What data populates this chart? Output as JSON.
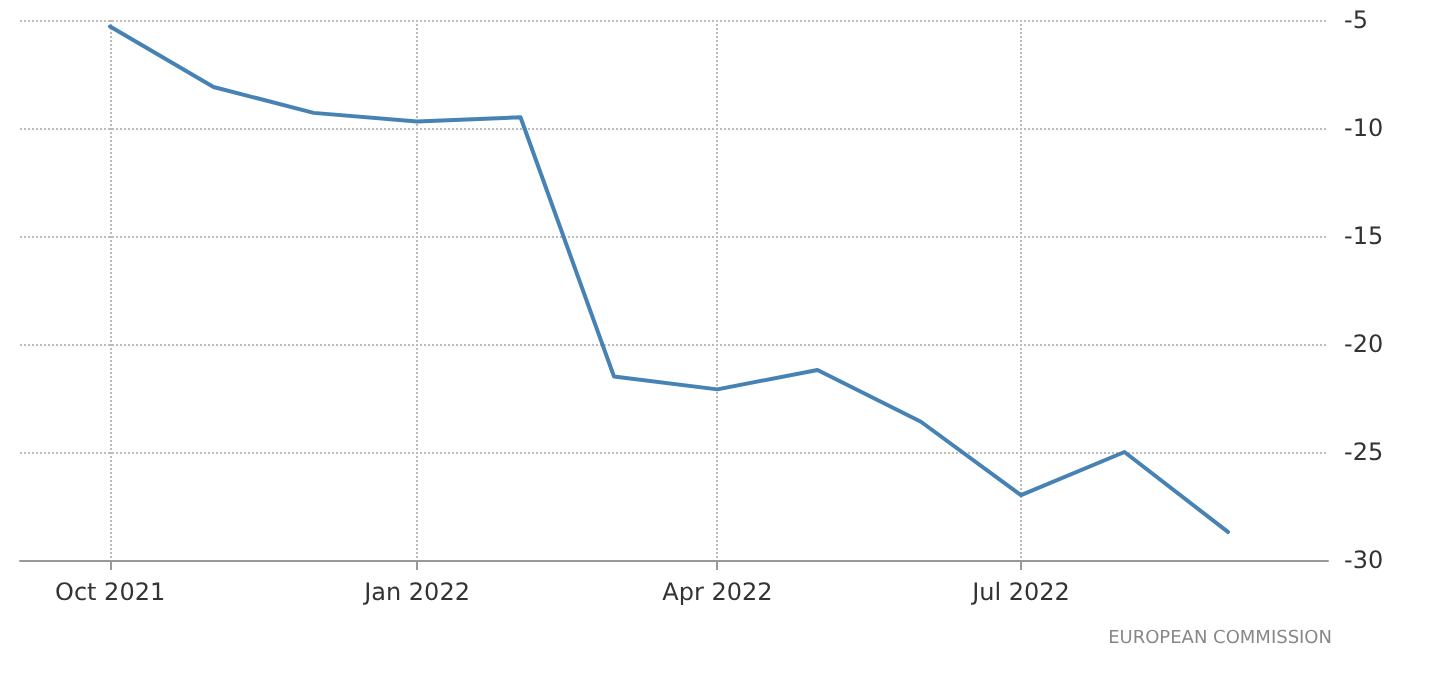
{
  "chart_data": {
    "type": "line",
    "x": [
      "2021-10",
      "2021-11",
      "2021-12",
      "2022-01",
      "2022-02",
      "2022-03",
      "2022-04",
      "2022-05",
      "2022-06",
      "2022-07",
      "2022-08",
      "2022-09"
    ],
    "series": [
      {
        "color": "#4682b4",
        "values": [
          -5.3,
          -8.1,
          -9.3,
          -9.7,
          -9.5,
          -21.5,
          -22.1,
          -21.2,
          -23.6,
          -27.0,
          -25.0,
          -28.7
        ]
      }
    ],
    "xlim": [
      "2021-09-04",
      "2022-10-01"
    ],
    "xticks": [
      {
        "value": "2021-10",
        "label": "Oct 2021"
      },
      {
        "value": "2022-01",
        "label": "Jan 2022"
      },
      {
        "value": "2022-04",
        "label": "Apr 2022"
      },
      {
        "value": "2022-07",
        "label": "Jul 2022"
      }
    ],
    "ylim": [
      -30,
      -5
    ],
    "yticks": [
      -30,
      -25,
      -20,
      -15,
      -10,
      -5
    ],
    "grid": true,
    "marker": "none",
    "line_style": "solid",
    "annotations": [
      "EUROPEAN COMMISSION"
    ]
  }
}
